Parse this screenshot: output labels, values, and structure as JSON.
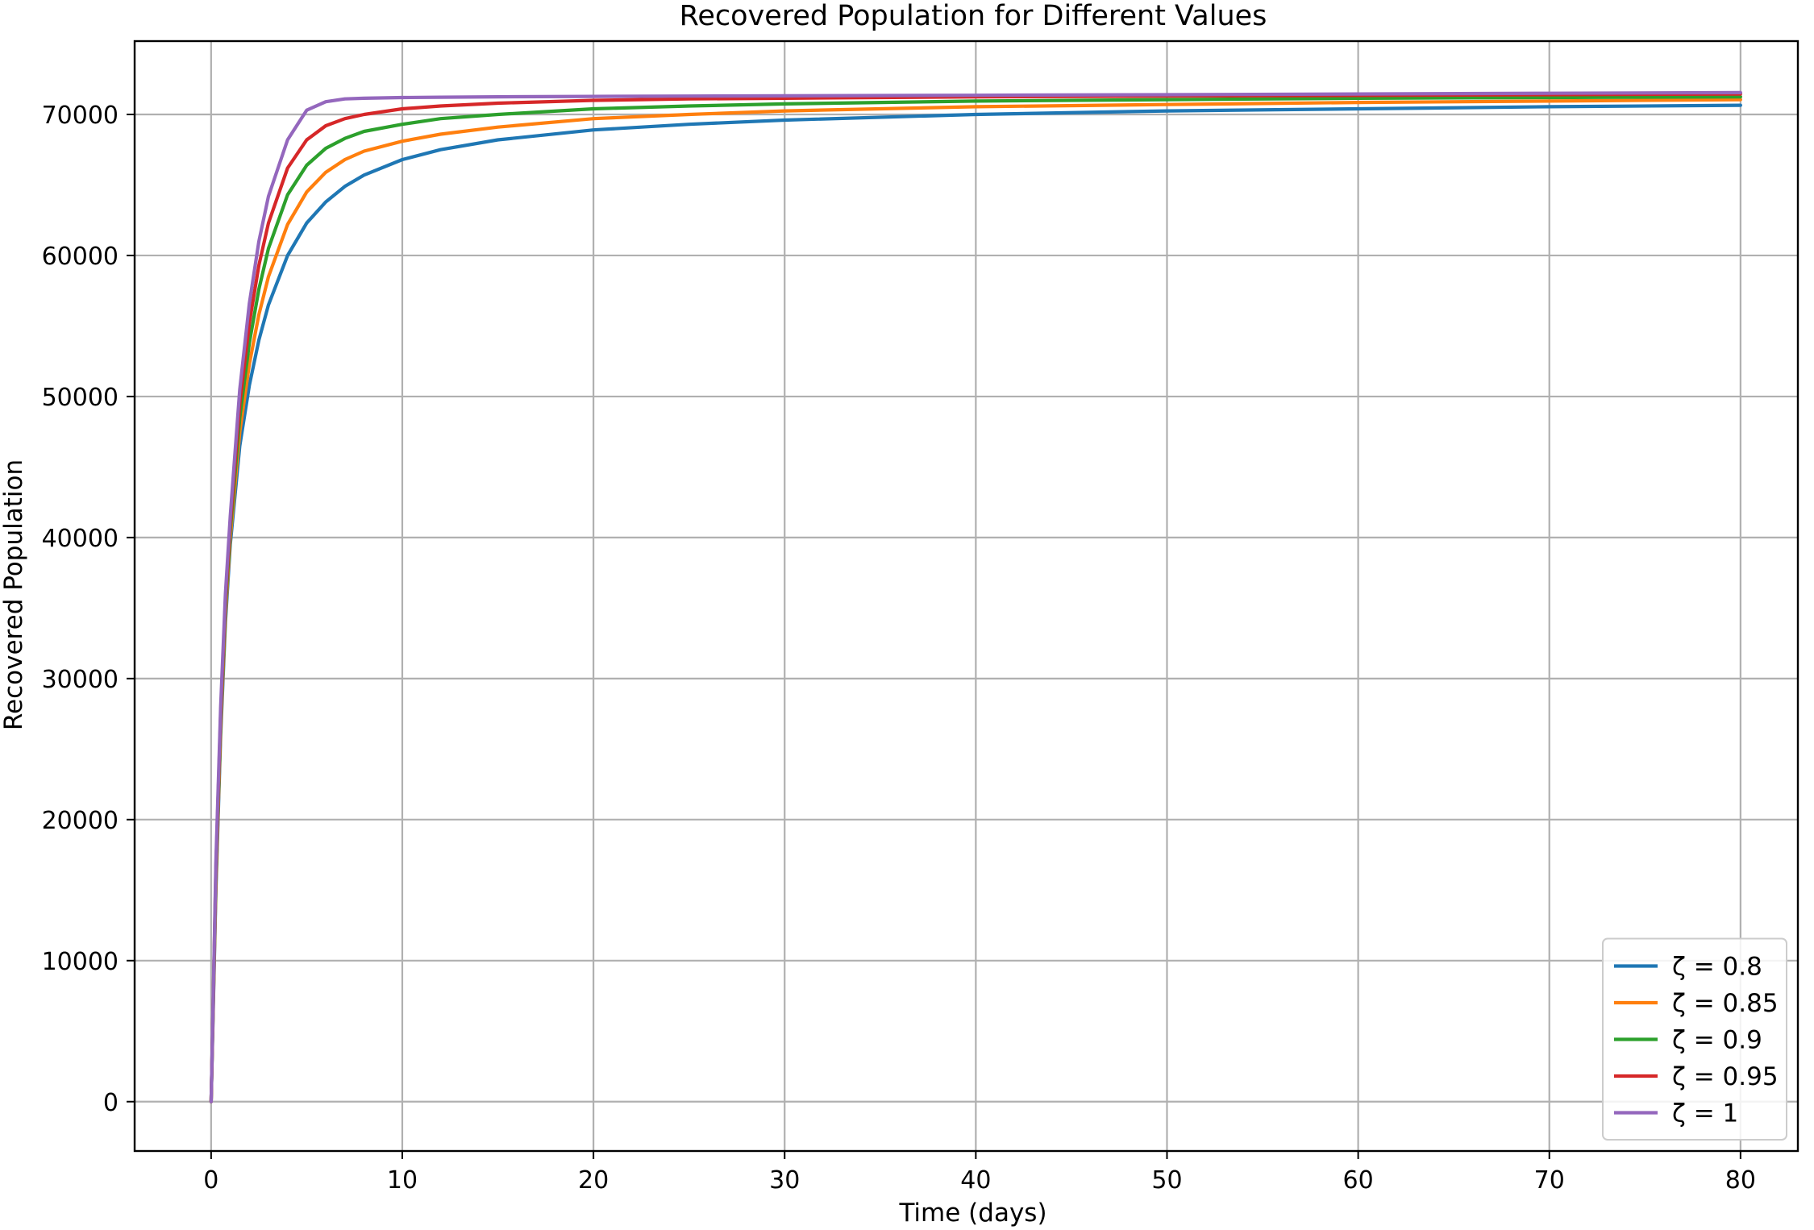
{
  "chart_data": {
    "type": "line",
    "title": "Recovered Population for Different Values",
    "xlabel": "Time (days)",
    "ylabel": "Recovered Population",
    "xlim": [
      -4,
      83
    ],
    "ylim": [
      -3500,
      75200
    ],
    "xticks": [
      0,
      10,
      20,
      30,
      40,
      50,
      60,
      70,
      80
    ],
    "yticks": [
      0,
      10000,
      20000,
      30000,
      40000,
      50000,
      60000,
      70000
    ],
    "xtick_labels": [
      "0",
      "10",
      "20",
      "30",
      "40",
      "50",
      "60",
      "70",
      "80"
    ],
    "ytick_labels": [
      "0",
      "10000",
      "20000",
      "30000",
      "40000",
      "50000",
      "60000",
      "70000"
    ],
    "grid": true,
    "legend_position": "bottom-right",
    "series": [
      {
        "name": "ζ = 0.8",
        "color": "#1f77b4",
        "x": [
          0,
          0.25,
          0.5,
          0.75,
          1,
          1.5,
          2,
          2.5,
          3,
          4,
          5,
          6,
          7,
          8,
          10,
          12,
          15,
          20,
          25,
          30,
          40,
          50,
          60,
          70,
          80
        ],
        "y": [
          0,
          15000,
          26000,
          34000,
          39500,
          46500,
          50800,
          54000,
          56500,
          60000,
          62300,
          63800,
          64900,
          65700,
          66800,
          67500,
          68200,
          68900,
          69300,
          69600,
          70000,
          70250,
          70400,
          70550,
          70650
        ]
      },
      {
        "name": "ζ = 0.85",
        "color": "#ff7f0e",
        "x": [
          0,
          0.25,
          0.5,
          0.75,
          1,
          1.5,
          2,
          2.5,
          3,
          4,
          5,
          6,
          7,
          8,
          10,
          12,
          15,
          20,
          25,
          30,
          40,
          50,
          60,
          70,
          80
        ],
        "y": [
          0,
          15500,
          26500,
          34500,
          40000,
          47500,
          52300,
          55800,
          58500,
          62200,
          64500,
          65900,
          66800,
          67400,
          68100,
          68600,
          69100,
          69700,
          70000,
          70250,
          70550,
          70700,
          70850,
          70950,
          71050
        ]
      },
      {
        "name": "ζ = 0.9",
        "color": "#2ca02c",
        "x": [
          0,
          0.25,
          0.5,
          0.75,
          1,
          1.5,
          2,
          2.5,
          3,
          4,
          5,
          6,
          7,
          8,
          10,
          12,
          15,
          20,
          25,
          30,
          40,
          50,
          60,
          70,
          80
        ],
        "y": [
          0,
          16000,
          27000,
          35000,
          40500,
          48500,
          53800,
          57600,
          60500,
          64300,
          66400,
          67600,
          68300,
          68800,
          69300,
          69700,
          70000,
          70400,
          70600,
          70750,
          70950,
          71050,
          71150,
          71200,
          71250
        ]
      },
      {
        "name": "ζ = 0.95",
        "color": "#d62728",
        "x": [
          0,
          0.25,
          0.5,
          0.75,
          1,
          1.5,
          2,
          2.5,
          3,
          4,
          5,
          6,
          7,
          8,
          10,
          12,
          15,
          20,
          25,
          30,
          40,
          50,
          60,
          70,
          80
        ],
        "y": [
          0,
          16500,
          27500,
          35500,
          41000,
          49500,
          55200,
          59300,
          62300,
          66200,
          68200,
          69200,
          69700,
          70000,
          70400,
          70600,
          70800,
          71000,
          71100,
          71150,
          71250,
          71300,
          71350,
          71400,
          71450
        ]
      },
      {
        "name": "ζ = 1",
        "color": "#9467bd",
        "x": [
          0,
          0.25,
          0.5,
          0.75,
          1,
          1.5,
          2,
          2.5,
          3,
          4,
          5,
          6,
          7,
          8,
          10,
          12,
          15,
          20,
          25,
          30,
          40,
          50,
          60,
          70,
          80
        ],
        "y": [
          0,
          17000,
          28000,
          36000,
          41500,
          50500,
          56600,
          61000,
          64200,
          68200,
          70300,
          70900,
          71100,
          71150,
          71200,
          71220,
          71250,
          71280,
          71300,
          71320,
          71360,
          71400,
          71450,
          71500,
          71550
        ]
      }
    ]
  }
}
